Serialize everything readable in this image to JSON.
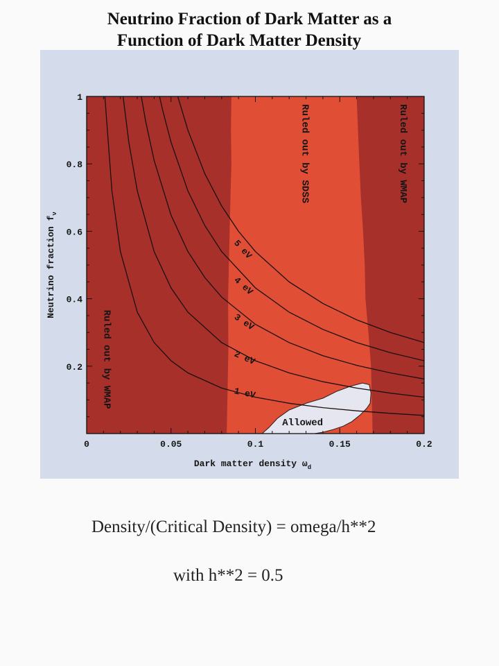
{
  "page": {
    "title_line_1": "Neutrino Fraction of Dark Matter as a",
    "title_line_2": "Function of Dark Matter Density",
    "note_1": "Density/(Critical Density) = omega/h**2",
    "note_2": "with h**2 = 0.5"
  },
  "colors": {
    "panel_background": "#d4dbea",
    "wmap_region": "#a8302a",
    "sdss_region": "#e04e36",
    "allowed_region": "#e6e6f0",
    "curve": "#1a1010"
  },
  "chart_data": {
    "type": "line",
    "xlabel": "Dark matter density ω",
    "xlabel_subscript": "d",
    "ylabel": "Neutrino fraction f",
    "ylabel_subscript": "ν",
    "xlim": [
      0,
      0.2
    ],
    "ylim": [
      0,
      1
    ],
    "x_ticks": [
      0,
      0.05,
      0.1,
      0.15,
      0.2
    ],
    "x_tick_labels": [
      "0",
      "0.05",
      "0.1",
      "0.15",
      "0.2"
    ],
    "y_ticks": [
      0.2,
      0.4,
      0.6,
      0.8,
      1
    ],
    "y_tick_labels": [
      "0.2",
      "0.4",
      "0.6",
      "0.8",
      "1"
    ],
    "grid": false,
    "series": [
      {
        "name": "1 eV",
        "x": [
          0.0108,
          0.015,
          0.02,
          0.03,
          0.04,
          0.05,
          0.06,
          0.08,
          0.1,
          0.12,
          0.14,
          0.16,
          0.18,
          0.2
        ],
        "y": [
          1.0,
          0.72,
          0.54,
          0.36,
          0.27,
          0.216,
          0.18,
          0.135,
          0.108,
          0.09,
          0.077,
          0.0675,
          0.06,
          0.054
        ]
      },
      {
        "name": "2 eV",
        "x": [
          0.0216,
          0.025,
          0.03,
          0.04,
          0.05,
          0.06,
          0.08,
          0.1,
          0.12,
          0.14,
          0.16,
          0.18,
          0.2
        ],
        "y": [
          1.0,
          0.864,
          0.72,
          0.54,
          0.432,
          0.36,
          0.27,
          0.216,
          0.18,
          0.154,
          0.135,
          0.12,
          0.108
        ]
      },
      {
        "name": "3 eV",
        "x": [
          0.0324,
          0.035,
          0.04,
          0.05,
          0.06,
          0.07,
          0.08,
          0.1,
          0.12,
          0.14,
          0.16,
          0.18,
          0.2
        ],
        "y": [
          1.0,
          0.926,
          0.81,
          0.648,
          0.54,
          0.463,
          0.405,
          0.324,
          0.27,
          0.231,
          0.2025,
          0.18,
          0.162
        ]
      },
      {
        "name": "4 eV",
        "x": [
          0.0432,
          0.045,
          0.05,
          0.06,
          0.07,
          0.08,
          0.1,
          0.12,
          0.14,
          0.16,
          0.18,
          0.2
        ],
        "y": [
          1.0,
          0.96,
          0.864,
          0.72,
          0.617,
          0.54,
          0.432,
          0.36,
          0.309,
          0.27,
          0.24,
          0.216
        ]
      },
      {
        "name": "5 eV",
        "x": [
          0.054,
          0.06,
          0.07,
          0.08,
          0.09,
          0.1,
          0.12,
          0.14,
          0.16,
          0.18,
          0.2
        ],
        "y": [
          1.0,
          0.9,
          0.771,
          0.675,
          0.6,
          0.54,
          0.45,
          0.386,
          0.3375,
          0.3,
          0.27
        ]
      }
    ],
    "regions": [
      {
        "label": "Ruled out by WMAP",
        "orientation": "vertical",
        "placement": "left"
      },
      {
        "label": "Ruled out by SDSS",
        "orientation": "vertical",
        "placement": "center"
      },
      {
        "label": "Ruled out by WMAP",
        "orientation": "vertical",
        "placement": "right"
      },
      {
        "label": "Allowed",
        "placement": "bottom-center-right"
      }
    ],
    "region_boundaries": {
      "left_wmap_edge": {
        "x": [
          0.083,
          0.0835,
          0.084,
          0.0838,
          0.0845,
          0.0852,
          0.0858,
          0.0855,
          0.0858
        ],
        "y": [
          0,
          0.12,
          0.25,
          0.4,
          0.55,
          0.7,
          0.8,
          0.9,
          1.0
        ]
      },
      "right_wmap_edge": {
        "x": [
          0.1695,
          0.169,
          0.1685,
          0.167,
          0.1652,
          0.1648,
          0.1638,
          0.1625,
          0.1612,
          0.16
        ],
        "y": [
          0,
          0.1,
          0.2,
          0.3,
          0.4,
          0.5,
          0.6,
          0.7,
          0.85,
          1.0
        ]
      },
      "allowed_edge": {
        "x": [
          0.104,
          0.108,
          0.113,
          0.12,
          0.13,
          0.14,
          0.148,
          0.156,
          0.1635,
          0.1675,
          0.1685,
          0.168,
          0.166,
          0.162,
          0.157,
          0.152,
          0.146,
          0.14,
          0.135
        ],
        "y": [
          0,
          0.018,
          0.045,
          0.07,
          0.09,
          0.105,
          0.125,
          0.14,
          0.15,
          0.145,
          0.12,
          0.09,
          0.075,
          0.055,
          0.035,
          0.022,
          0.012,
          0.004,
          0
        ]
      }
    }
  }
}
